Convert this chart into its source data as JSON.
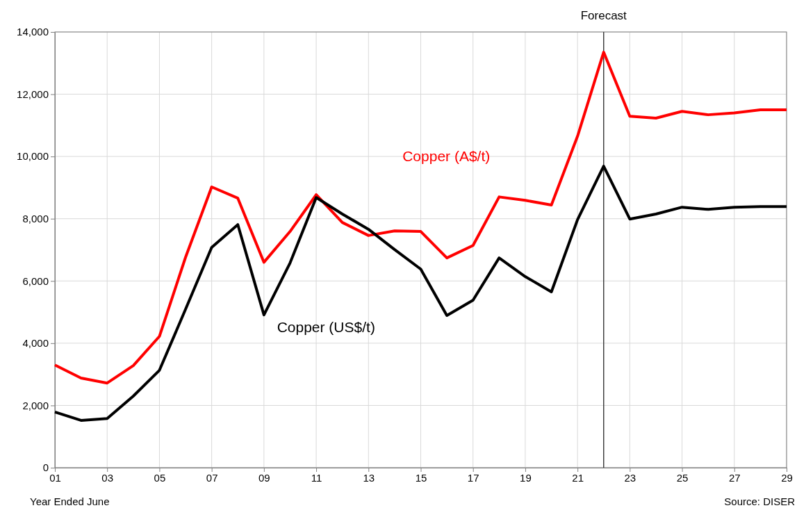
{
  "chart_data": {
    "type": "line",
    "xlabel": "Year Ended June",
    "x": [
      1,
      2,
      3,
      4,
      5,
      6,
      7,
      8,
      9,
      10,
      11,
      12,
      13,
      14,
      15,
      16,
      17,
      18,
      19,
      20,
      21,
      22,
      23,
      24,
      25,
      26,
      27,
      28,
      29
    ],
    "series": [
      {
        "name": "Copper (A$/t)",
        "color": "#ff0000",
        "values": [
          3300,
          2880,
          2720,
          3280,
          4220,
          6760,
          9020,
          8660,
          6600,
          7590,
          8770,
          7880,
          7460,
          7610,
          7590,
          6740,
          7140,
          8700,
          8590,
          8440,
          10650,
          13350,
          11290,
          11230,
          11450,
          11340,
          11400,
          11500,
          11500
        ]
      },
      {
        "name": "Copper (US$/t)",
        "color": "#000000",
        "values": [
          1790,
          1520,
          1580,
          2300,
          3130,
          5090,
          7080,
          7810,
          4910,
          6580,
          8680,
          8150,
          7660,
          7010,
          6380,
          4890,
          5380,
          6740,
          6140,
          5650,
          7970,
          9690,
          7990,
          8150,
          8370,
          8300,
          8370,
          8390,
          8390
        ]
      }
    ],
    "xlim": [
      1,
      29
    ],
    "xticks": [
      {
        "value": 1,
        "label": "01"
      },
      {
        "value": 3,
        "label": "03"
      },
      {
        "value": 5,
        "label": "05"
      },
      {
        "value": 7,
        "label": "07"
      },
      {
        "value": 9,
        "label": "09"
      },
      {
        "value": 11,
        "label": "11"
      },
      {
        "value": 13,
        "label": "13"
      },
      {
        "value": 15,
        "label": "15"
      },
      {
        "value": 17,
        "label": "17"
      },
      {
        "value": 19,
        "label": "19"
      },
      {
        "value": 21,
        "label": "21"
      },
      {
        "value": 23,
        "label": "23"
      },
      {
        "value": 25,
        "label": "25"
      },
      {
        "value": 27,
        "label": "27"
      },
      {
        "value": 29,
        "label": "29"
      }
    ],
    "ylim": [
      0,
      14000
    ],
    "yticks": [
      0,
      {
        "value": 2000,
        "label": "2,000"
      },
      {
        "value": 4000,
        "label": "4,000"
      },
      {
        "value": 6000,
        "label": "6,000"
      },
      {
        "value": 8000,
        "label": "8,000"
      },
      {
        "value": 10000,
        "label": "10,000"
      },
      {
        "value": 12000,
        "label": "12,000"
      },
      {
        "value": 14000,
        "label": "14,000"
      }
    ],
    "ref_lines": [
      {
        "axis": "x",
        "value": 22,
        "label": "Forecast",
        "color": "#404040"
      }
    ],
    "grid": true,
    "line_style": "solid",
    "marker": "none",
    "annotations": [
      "Source: DISER"
    ]
  }
}
